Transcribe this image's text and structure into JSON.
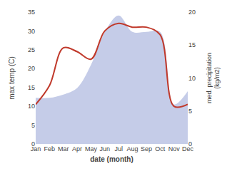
{
  "chart_data": {
    "type": "line",
    "categories": [
      "Jan",
      "Feb",
      "Mar",
      "Apr",
      "May",
      "Jun",
      "Jul",
      "Aug",
      "Sep",
      "Oct",
      "Nov",
      "Dec"
    ],
    "series": [
      {
        "type": "area",
        "color": "#c5cce8",
        "axis": "y2",
        "values": [
          7.0,
          7.0,
          7.5,
          8.5,
          12.0,
          17.0,
          19.5,
          17.0,
          17.0,
          17.0,
          6.0,
          8.0
        ]
      },
      {
        "type": "line",
        "color": "#c0392b",
        "values": [
          10.5,
          15.5,
          25.5,
          24.5,
          22.5,
          30.0,
          32.0,
          31.0,
          31.0,
          29.0,
          10.0,
          10.5
        ]
      }
    ],
    "xlabel": "date (month)",
    "ylabel": "max temp (C)",
    "y2label": "med. precipitation\n(kg/m2)",
    "ylim": [
      0,
      35
    ],
    "yticks": [
      0,
      5,
      10,
      15,
      20,
      25,
      30,
      35
    ],
    "y2lim": [
      0,
      20
    ],
    "y2ticks": [
      0,
      5,
      10,
      15,
      20
    ],
    "grid": false
  }
}
